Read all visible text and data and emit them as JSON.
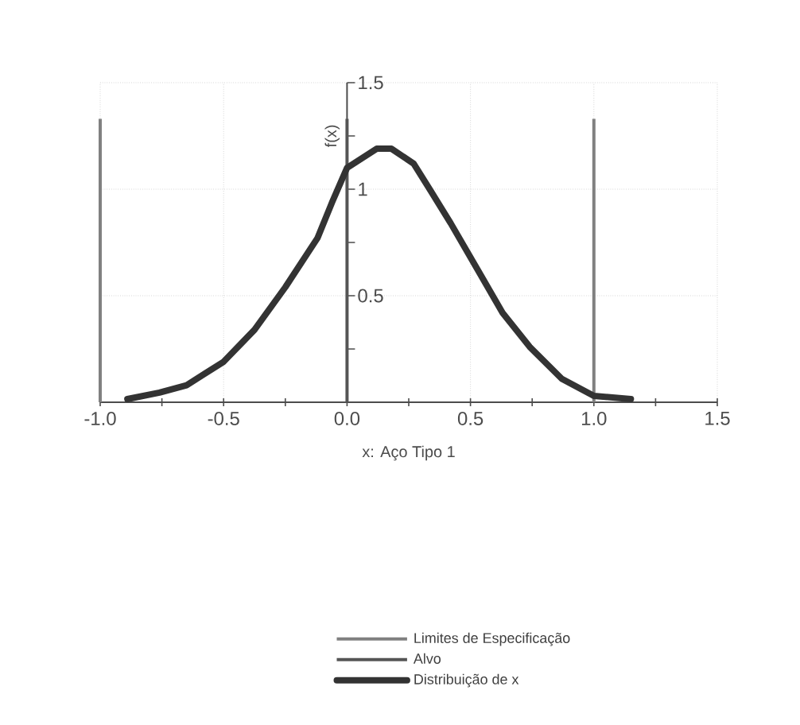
{
  "chart_data": {
    "type": "line",
    "xlabel": "x: Aço Tipo 1",
    "ylabel": "f(x)",
    "xlim": [
      -1,
      1.5
    ],
    "ylim": [
      0,
      1.5
    ],
    "xticks": [
      {
        "value": -1,
        "label": "-1.0"
      },
      {
        "value": -0.75,
        "label": null
      },
      {
        "value": -0.5,
        "label": "-0.5"
      },
      {
        "value": -0.25,
        "label": null
      },
      {
        "value": 0,
        "label": "0.0"
      },
      {
        "value": 0.25,
        "label": null
      },
      {
        "value": 0.5,
        "label": "0.5"
      },
      {
        "value": 0.75,
        "label": null
      },
      {
        "value": 1,
        "label": "1.0"
      },
      {
        "value": 1.25,
        "label": null
      },
      {
        "value": 1.5,
        "label": "1.5"
      }
    ],
    "yticks": [
      {
        "value": 0.25,
        "label": null
      },
      0.5,
      {
        "value": 0.75,
        "label": null
      },
      1,
      {
        "value": 1.25,
        "label": null
      },
      1.5
    ],
    "grid": true,
    "legend": "bottom",
    "marker": "none",
    "line_style": "solid",
    "ref_lines": [
      {
        "axis": "x",
        "value": -1,
        "label": "Limites de Especificação",
        "color": "#808080"
      },
      {
        "axis": "x",
        "value": 1,
        "color": "#808080"
      },
      {
        "axis": "x",
        "value": 0,
        "label": "Alvo",
        "color": "#555555"
      }
    ],
    "series": [
      {
        "name": "Distribuição de x",
        "color": "#333333",
        "x": [
          -0.89,
          -0.76,
          -0.65,
          -0.5,
          -0.375,
          -0.25,
          -0.12,
          -0.06,
          0,
          0.12,
          0.18,
          0.27,
          0.34,
          0.42,
          0.53,
          0.63,
          0.74,
          0.87,
          1.0,
          1.15
        ],
        "values": [
          0.015,
          0.045,
          0.08,
          0.19,
          0.34,
          0.54,
          0.77,
          0.94,
          1.1,
          1.19,
          1.19,
          1.12,
          0.99,
          0.84,
          0.62,
          0.42,
          0.26,
          0.11,
          0.03,
          0.015
        ]
      }
    ]
  }
}
